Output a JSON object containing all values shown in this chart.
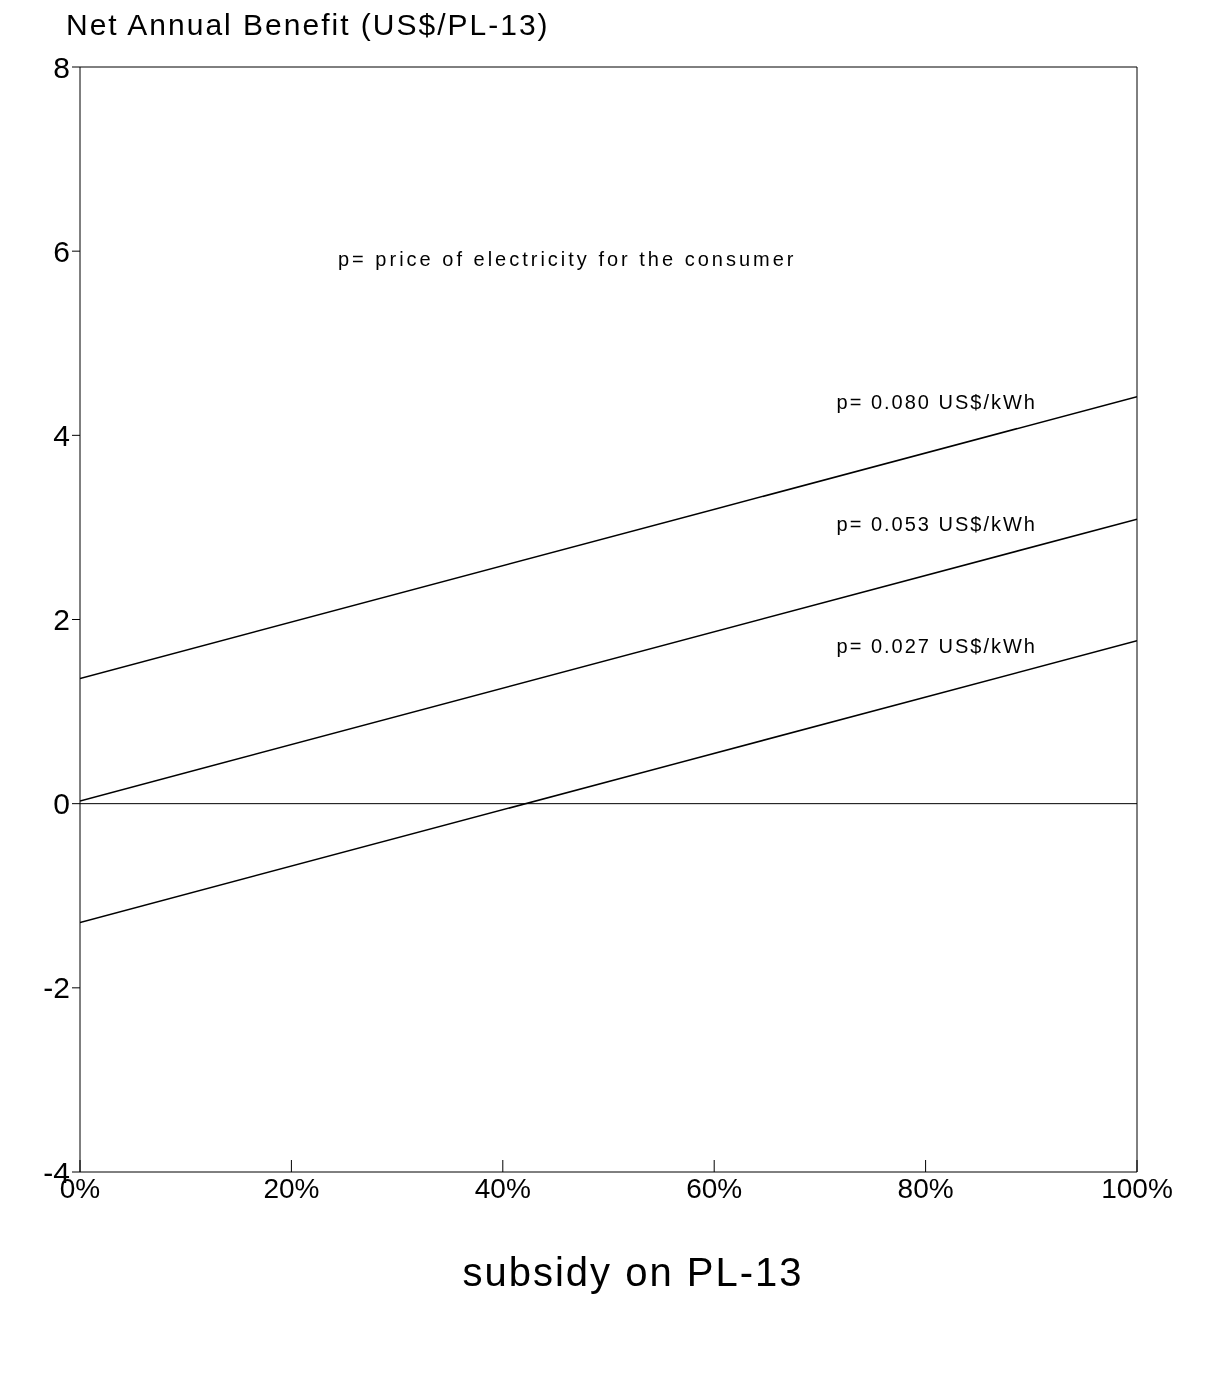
{
  "chart_data": {
    "type": "line",
    "ylabel": "Net Annual Benefit (US$/PL-13)",
    "xlabel": "subsidy on PL-13",
    "x": [
      0,
      100
    ],
    "series": [
      {
        "name": "p= 0.080 US$/kWh",
        "color": "#000000",
        "values": [
          1.36,
          4.42
        ]
      },
      {
        "name": "p= 0.053 US$/kWh",
        "color": "#000000",
        "values": [
          0.03,
          3.09
        ]
      },
      {
        "name": "p= 0.027 US$/kWh",
        "color": "#000000",
        "values": [
          -1.29,
          1.77
        ]
      }
    ],
    "xlim": [
      0,
      100
    ],
    "xticks": [
      {
        "value": 0,
        "label": "0%"
      },
      {
        "value": 20,
        "label": "20%"
      },
      {
        "value": 40,
        "label": "40%"
      },
      {
        "value": 60,
        "label": "60%"
      },
      {
        "value": 80,
        "label": "80%"
      },
      {
        "value": 100,
        "label": "100%"
      }
    ],
    "ylim": [
      -4,
      8
    ],
    "yticks": [
      -4,
      -2,
      0,
      2,
      4,
      6,
      8
    ],
    "ref_lines": [
      {
        "axis": "y",
        "value": 0,
        "color": "#000000"
      }
    ],
    "annotations": [
      "p= price of electricity for the consumer"
    ],
    "grid": false,
    "legend": false,
    "marker": "none",
    "line_style": "solid"
  }
}
